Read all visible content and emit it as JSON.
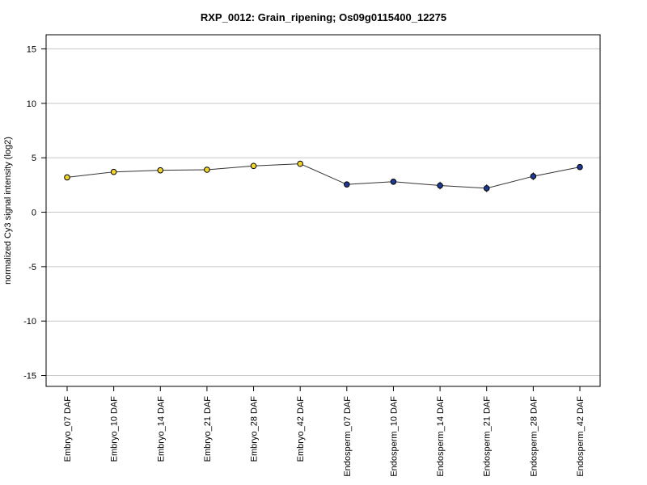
{
  "chart_data": {
    "type": "line",
    "title": "RXP_0012: Grain_ripening; Os09g0115400_12275",
    "xlabel": "",
    "ylabel": "normalized Cy3 signal intensity (log2)",
    "ylim": [
      -16,
      16.3
    ],
    "yticks": [
      -15,
      -10,
      -5,
      0,
      5,
      10,
      15
    ],
    "grid": "horizontal",
    "categories": [
      "Embryo_07 DAF",
      "Embryo_10 DAF",
      "Embryo_14 DAF",
      "Embryo_21 DAF",
      "Embryo_28 DAF",
      "Embryo_42 DAF",
      "Endosperm_07 DAF",
      "Endosperm_10 DAF",
      "Endosperm_14 DAF",
      "Endosperm_21 DAF",
      "Endosperm_28 DAF",
      "Endosperm_42 DAF"
    ],
    "values": [
      3.2,
      3.7,
      3.85,
      3.9,
      4.25,
      4.45,
      2.55,
      2.8,
      2.45,
      2.2,
      3.3,
      4.15
    ],
    "errors": [
      0.15,
      0.2,
      0.15,
      0.15,
      0.15,
      0.15,
      0.15,
      0.15,
      0.35,
      0.35,
      0.35,
      0.15
    ],
    "point_colors": [
      "#f2d42e",
      "#f2d42e",
      "#f2d42e",
      "#f2d42e",
      "#f2d42e",
      "#f2d42e",
      "#1f3a93",
      "#1f3a93",
      "#1f3a93",
      "#1f3a93",
      "#1f3a93",
      "#1f3a93"
    ],
    "colors": {
      "embryo": "#f2d42e",
      "endosperm": "#1f3a93",
      "line": "#333333",
      "grid": "#c8c8c8"
    }
  }
}
